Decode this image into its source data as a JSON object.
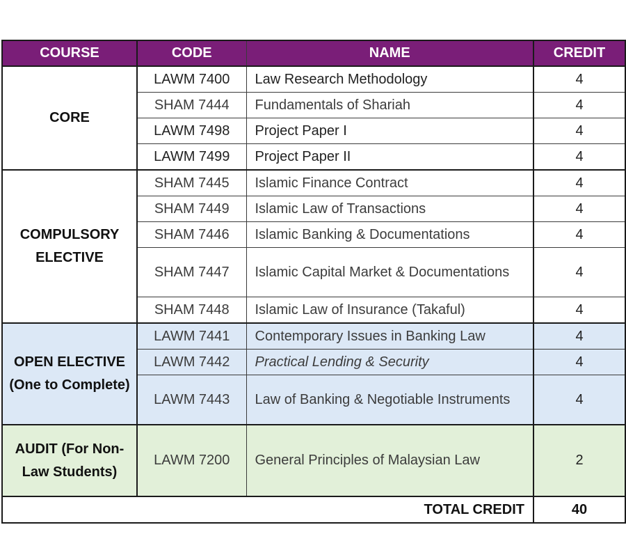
{
  "headers": {
    "course": "COURSE",
    "code": "CODE",
    "name": "NAME",
    "credit": "CREDIT"
  },
  "colors": {
    "header_bg": "#7a1e78",
    "open_elective_bg": "#dce8f6",
    "audit_bg": "#e2f0d9"
  },
  "groups": {
    "core": "CORE",
    "compulsory_elective": "COMPULSORY ELECTIVE",
    "open_elective": "OPEN ELECTIVE (One to Complete)",
    "audit": "AUDIT (For Non-Law Students)"
  },
  "rows": [
    {
      "code": "LAWM 7400",
      "name": "Law Research Methodology",
      "credit": "4"
    },
    {
      "code": "SHAM 7444",
      "name": "Fundamentals of Shariah",
      "credit": "4"
    },
    {
      "code": "LAWM 7498",
      "name": "Project Paper I",
      "credit": "4"
    },
    {
      "code": "LAWM 7499",
      "name": "Project Paper II",
      "credit": "4"
    },
    {
      "code": "SHAM 7445",
      "name": "Islamic Finance Contract",
      "credit": "4"
    },
    {
      "code": "SHAM 7449",
      "name": "Islamic Law of Transactions",
      "credit": "4"
    },
    {
      "code": "SHAM 7446",
      "name": "Islamic Banking & Documentations",
      "credit": "4"
    },
    {
      "code": "SHAM 7447",
      "name": "Islamic Capital Market & Documentations",
      "credit": "4"
    },
    {
      "code": "SHAM 7448",
      "name": "Islamic Law of Insurance (Takaful)",
      "credit": "4"
    },
    {
      "code": "LAWM 7441",
      "name": "Contemporary Issues in Banking Law",
      "credit": "4"
    },
    {
      "code": "LAWM 7442",
      "name": "Practical Lending & Security",
      "credit": "4"
    },
    {
      "code": "LAWM 7443",
      "name": "Law of Banking & Negotiable Instruments",
      "credit": "4"
    },
    {
      "code": "LAWM 7200",
      "name": "General Principles of Malaysian Law",
      "credit": "2"
    }
  ],
  "total": {
    "label": "TOTAL CREDIT",
    "value": "40"
  }
}
